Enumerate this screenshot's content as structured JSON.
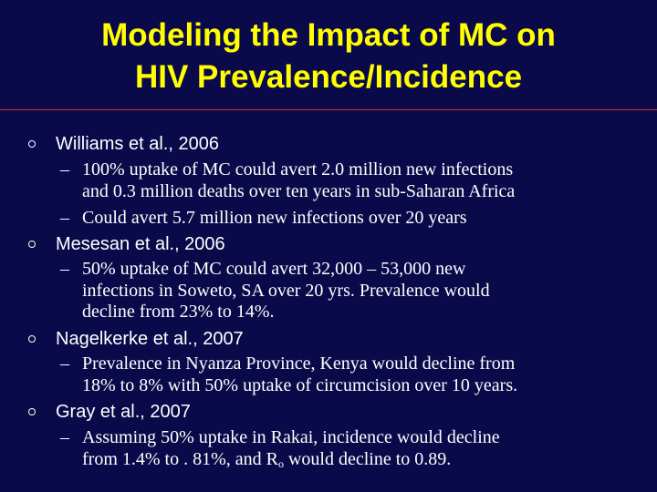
{
  "slide": {
    "title_lines": [
      "Modeling the Impact of MC on",
      "HIV Prevalence/Incidence"
    ],
    "colors": {
      "background": "#0a0a4a",
      "title": "#ffff00",
      "divider": "#c0392b",
      "text": "#ffffff"
    },
    "dash": "–",
    "bullets": [
      {
        "label": "Williams et al., 2006",
        "subs": [
          {
            "lines": [
              "100% uptake of MC could avert 2.0 million new infections",
              "and 0.3 million deaths over ten years in sub-Saharan Africa"
            ]
          },
          {
            "lines": [
              "Could avert 5.7 million new infections over 20 years"
            ]
          }
        ]
      },
      {
        "label": "Mesesan et al., 2006",
        "subs": [
          {
            "lines": [
              "50% uptake of MC could avert 32,000 – 53,000 new",
              "infections in Soweto, SA over 20 yrs.  Prevalence would",
              "decline from 23% to 14%."
            ]
          }
        ]
      },
      {
        "label": "Nagelkerke et al., 2007",
        "subs": [
          {
            "lines": [
              "Prevalence in Nyanza Province, Kenya would decline from",
              "18% to 8% with 50% uptake of circumcision over 10 years."
            ]
          }
        ]
      },
      {
        "label": "Gray et al., 2007",
        "subs": [
          {
            "lines": [
              "Assuming 50% uptake in Rakai, incidence would decline"
            ],
            "last_line": {
              "before": "from 1.4% to . 81%, and R",
              "subscript": "o",
              "after": " would decline to 0.89."
            }
          }
        ]
      }
    ]
  }
}
